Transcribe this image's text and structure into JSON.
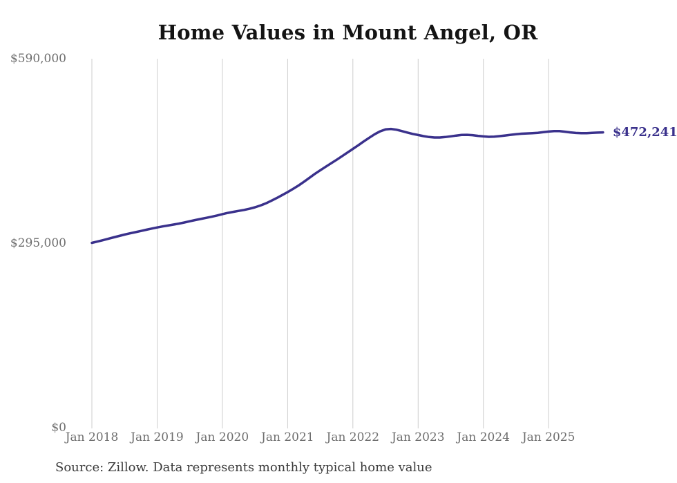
{
  "chart": {
    "title": "Home Values in Mount Angel, OR",
    "source_note": "Source: Zillow. Data represents monthly typical home value",
    "end_label": "$472,241",
    "line_color": "#3a318c",
    "gridline_color": "#cdcdcd",
    "axis_label_color": "#6e6e6e",
    "title_color": "#141414",
    "source_color": "#3a3a3a",
    "background_color": "#ffffff"
  },
  "chart_data": {
    "type": "line",
    "title": "Home Values in Mount Angel, OR",
    "xlabel": "",
    "ylabel": "",
    "x_start_month": "2018-01",
    "x_frequency": "monthly",
    "x_tick_labels": [
      "Jan 2018",
      "Jan 2019",
      "Jan 2020",
      "Jan 2021",
      "Jan 2022",
      "Jan 2023",
      "Jan 2024",
      "Jan 2025"
    ],
    "x_tick_month_indices": [
      0,
      12,
      24,
      36,
      48,
      60,
      72,
      84
    ],
    "y_ticks": [
      {
        "label": "$590,000",
        "value": 590000
      },
      {
        "label": "$295,000",
        "value": 295000
      },
      {
        "label": "$0",
        "value": 0
      }
    ],
    "ylim": [
      0,
      590000
    ],
    "grid": "vertical-only",
    "legend": "none",
    "last_value": 472241,
    "last_value_label": "$472,241",
    "series": [
      {
        "name": "Monthly typical home value",
        "values": [
          295500,
          297600,
          299800,
          302100,
          304400,
          306600,
          308800,
          310800,
          312700,
          314600,
          316500,
          318400,
          320200,
          321800,
          323300,
          324800,
          326400,
          328200,
          330100,
          332000,
          333800,
          335500,
          337300,
          339300,
          341500,
          343500,
          345200,
          346700,
          348200,
          350100,
          352400,
          355300,
          358800,
          362800,
          367300,
          372000,
          376800,
          381800,
          387300,
          393200,
          399500,
          405800,
          411700,
          417300,
          422800,
          428400,
          434100,
          440000,
          445800,
          451700,
          457700,
          463600,
          469200,
          473900,
          477000,
          477800,
          476500,
          474300,
          472000,
          469800,
          468000,
          466300,
          464800,
          464000,
          464100,
          464800,
          465900,
          467100,
          468100,
          468400,
          467800,
          466700,
          465800,
          465200,
          465400,
          466200,
          467300,
          468400,
          469400,
          470100,
          470600,
          471000,
          471600,
          472500,
          473600,
          474300,
          474200,
          473300,
          472200,
          471300,
          470900,
          471000,
          471500,
          471900,
          472241
        ]
      }
    ]
  }
}
